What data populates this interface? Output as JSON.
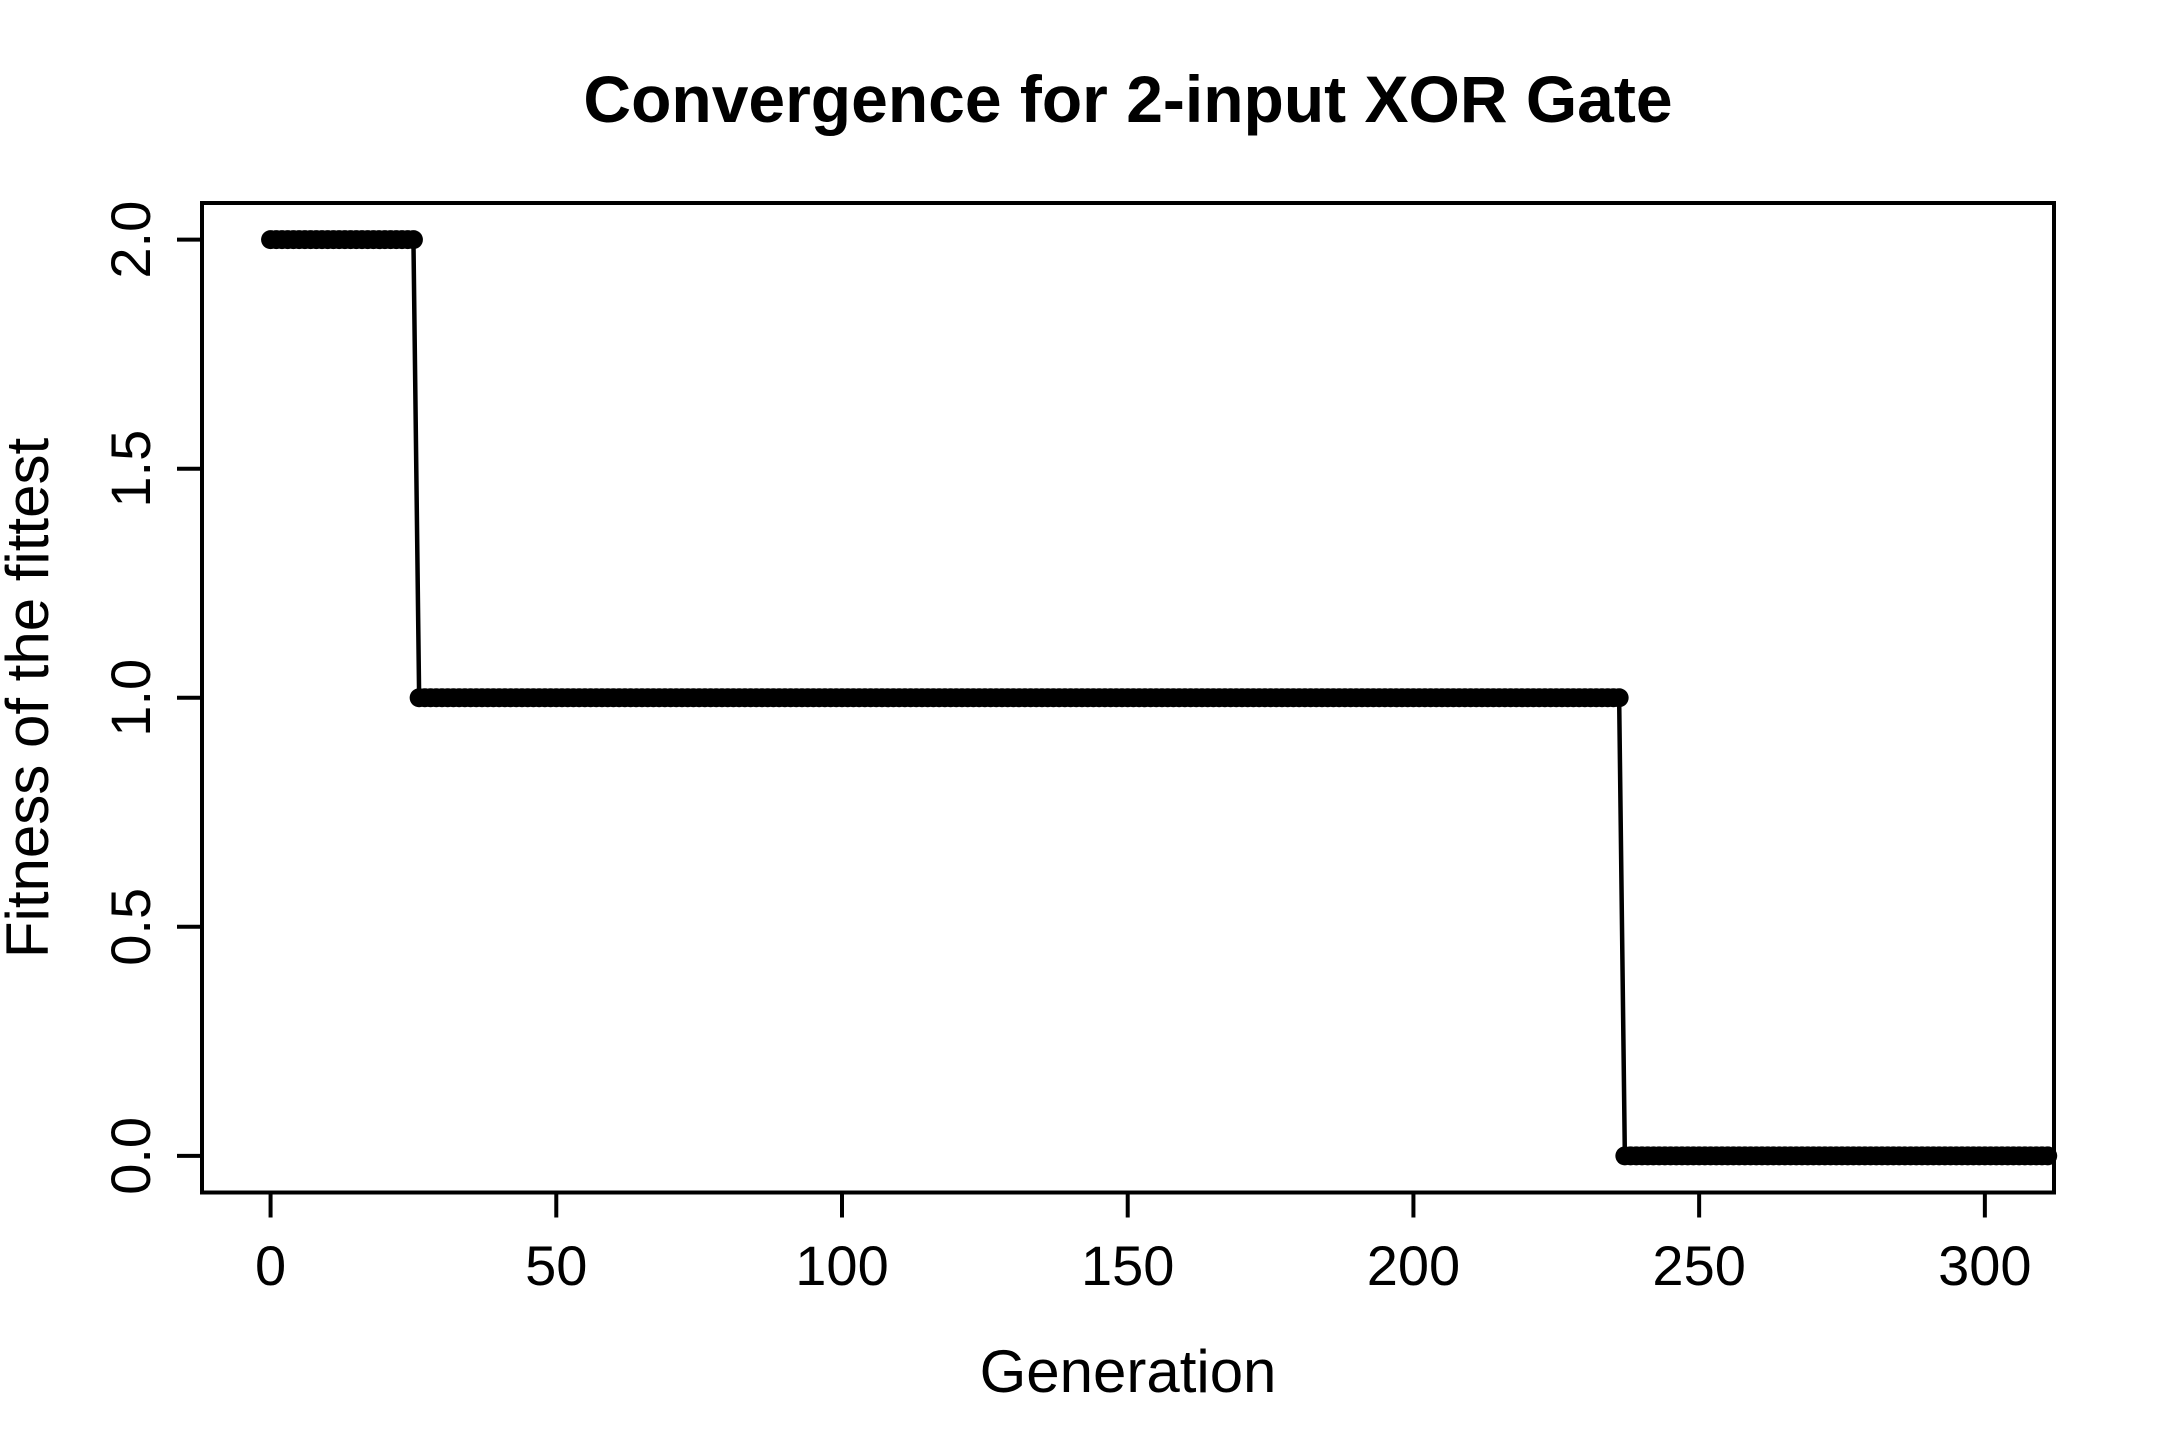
{
  "chart_data": {
    "type": "scatter",
    "title": "Convergence for 2-input XOR Gate",
    "xlabel": "Generation",
    "ylabel": "Fitness of the fittest",
    "x_ticks": [
      0,
      50,
      100,
      150,
      200,
      250,
      300
    ],
    "x_tick_labels": [
      "0",
      "50",
      "100",
      "150",
      "200",
      "250",
      "300"
    ],
    "y_ticks": [
      0,
      0.5,
      1,
      1.5,
      2
    ],
    "y_tick_labels": [
      "0.0",
      "0.5",
      "1.0",
      "1.5",
      "2.0"
    ],
    "xlim": [
      -12,
      312.1
    ],
    "ylim": [
      -0.08,
      2.08
    ],
    "grid": false,
    "legend": "none",
    "marker": "filled-circle",
    "line_style": "points-connected-by-thin-line",
    "series": [
      {
        "name": "fitness-of-fittest",
        "step_segments": [
          {
            "generation_start": 0,
            "generation_end": 25,
            "fitness": 2
          },
          {
            "generation_start": 26,
            "generation_end": 236,
            "fitness": 1
          },
          {
            "generation_start": 237,
            "generation_end": 311,
            "fitness": 0
          }
        ]
      }
    ],
    "colors": {
      "foreground": "#000000",
      "background": "#ffffff"
    }
  }
}
